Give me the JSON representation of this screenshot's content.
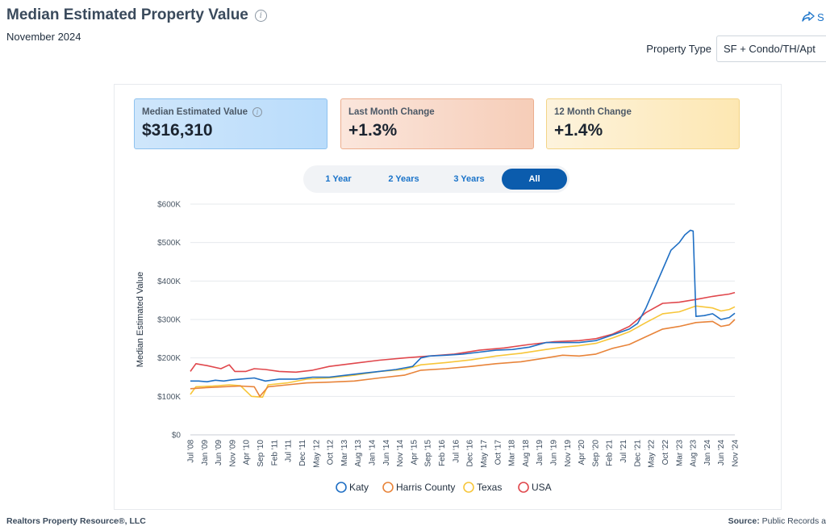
{
  "header": {
    "title": "Median Estimated Property Value",
    "subtitle": "November 2024",
    "share_label": "S",
    "property_type_label": "Property Type",
    "property_type_value": "SF + Condo/TH/Apt"
  },
  "kpis": [
    {
      "label": "Median Estimated Value",
      "value": "$316,310",
      "has_info": true
    },
    {
      "label": "Last Month Change",
      "value": "+1.3%"
    },
    {
      "label": "12 Month Change",
      "value": "+1.4%"
    }
  ],
  "range_tabs": [
    {
      "label": "1 Year",
      "active": false
    },
    {
      "label": "2 Years",
      "active": false
    },
    {
      "label": "3 Years",
      "active": false
    },
    {
      "label": "All",
      "active": true
    }
  ],
  "footer": {
    "left": "Realtors Property Resource®, LLC",
    "right_label": "Source:",
    "right_text": "Public Records a"
  },
  "colors": {
    "katy": "#1f6fc4",
    "harris": "#e8843a",
    "texas": "#f7c63a",
    "usa": "#e0474c",
    "accent": "#0b5cad"
  },
  "chart_data": {
    "type": "line",
    "title": "",
    "xlabel": "",
    "ylabel": "Median Estimated Value",
    "ylim": [
      0,
      600000
    ],
    "y_ticks": [
      0,
      100000,
      200000,
      300000,
      400000,
      500000,
      600000
    ],
    "y_tick_labels": [
      "$0",
      "$100K",
      "$200K",
      "$300K",
      "$400K",
      "$500K",
      "$600K"
    ],
    "x_tick_labels": [
      "Jul '08",
      "Jan '09",
      "Jun '09",
      "Nov '09",
      "Apr '10",
      "Sep '10",
      "Feb '11",
      "Jul '11",
      "Dec '11",
      "May '12",
      "Oct '12",
      "Mar '13",
      "Aug '13",
      "Jan '14",
      "Jun '14",
      "Nov '14",
      "Apr '15",
      "Sep '15",
      "Feb '16",
      "Jul '16",
      "Dec '16",
      "May '17",
      "Oct '17",
      "Mar '18",
      "Aug '18",
      "Jan '19",
      "Jun '19",
      "Nov '19",
      "Apr '20",
      "Sep '20",
      "Feb '21",
      "Jul '21",
      "Dec '21",
      "May '22",
      "Oct '22",
      "Mar '23",
      "Aug '23",
      "Jan '24",
      "Jun '24",
      "Nov '24"
    ],
    "x_start": "2008-07",
    "x_end": "2024-11",
    "grid": true,
    "legend_position": "bottom",
    "series": [
      {
        "name": "Katy",
        "color": "#1f6fc4",
        "points": [
          [
            "2008-07",
            140000
          ],
          [
            "2008-10",
            140000
          ],
          [
            "2009-01",
            138000
          ],
          [
            "2009-04",
            142000
          ],
          [
            "2009-07",
            140000
          ],
          [
            "2009-10",
            143000
          ],
          [
            "2010-01",
            145000
          ],
          [
            "2010-06",
            148000
          ],
          [
            "2010-10",
            140000
          ],
          [
            "2011-03",
            145000
          ],
          [
            "2011-09",
            145000
          ],
          [
            "2012-03",
            150000
          ],
          [
            "2012-09",
            150000
          ],
          [
            "2013-03",
            155000
          ],
          [
            "2013-09",
            160000
          ],
          [
            "2014-03",
            165000
          ],
          [
            "2014-09",
            170000
          ],
          [
            "2015-03",
            178000
          ],
          [
            "2015-06",
            200000
          ],
          [
            "2015-09",
            205000
          ],
          [
            "2016-03",
            207000
          ],
          [
            "2016-09",
            210000
          ],
          [
            "2017-03",
            215000
          ],
          [
            "2017-09",
            220000
          ],
          [
            "2018-03",
            222000
          ],
          [
            "2018-09",
            228000
          ],
          [
            "2019-03",
            240000
          ],
          [
            "2019-09",
            240000
          ],
          [
            "2020-03",
            240000
          ],
          [
            "2020-09",
            245000
          ],
          [
            "2021-03",
            260000
          ],
          [
            "2021-09",
            275000
          ],
          [
            "2021-12",
            290000
          ],
          [
            "2022-03",
            330000
          ],
          [
            "2022-06",
            380000
          ],
          [
            "2022-09",
            430000
          ],
          [
            "2022-12",
            480000
          ],
          [
            "2023-03",
            500000
          ],
          [
            "2023-05",
            520000
          ],
          [
            "2023-07",
            532000
          ],
          [
            "2023-08",
            530000
          ],
          [
            "2023-09",
            308000
          ],
          [
            "2023-12",
            310000
          ],
          [
            "2024-03",
            315000
          ],
          [
            "2024-06",
            300000
          ],
          [
            "2024-09",
            305000
          ],
          [
            "2024-11",
            316310
          ]
        ]
      },
      {
        "name": "Harris County",
        "color": "#e8843a",
        "points": [
          [
            "2008-07",
            120000
          ],
          [
            "2009-01",
            123000
          ],
          [
            "2009-07",
            125000
          ],
          [
            "2010-01",
            127000
          ],
          [
            "2010-06",
            125000
          ],
          [
            "2010-08",
            100000
          ],
          [
            "2010-11",
            125000
          ],
          [
            "2011-06",
            130000
          ],
          [
            "2012-01",
            135000
          ],
          [
            "2012-09",
            137000
          ],
          [
            "2013-06",
            140000
          ],
          [
            "2014-03",
            148000
          ],
          [
            "2014-12",
            155000
          ],
          [
            "2015-06",
            168000
          ],
          [
            "2016-03",
            172000
          ],
          [
            "2016-12",
            178000
          ],
          [
            "2017-09",
            185000
          ],
          [
            "2018-06",
            190000
          ],
          [
            "2019-03",
            200000
          ],
          [
            "2019-09",
            207000
          ],
          [
            "2020-03",
            205000
          ],
          [
            "2020-09",
            210000
          ],
          [
            "2021-03",
            225000
          ],
          [
            "2021-09",
            235000
          ],
          [
            "2022-03",
            255000
          ],
          [
            "2022-09",
            275000
          ],
          [
            "2023-03",
            282000
          ],
          [
            "2023-09",
            292000
          ],
          [
            "2024-03",
            295000
          ],
          [
            "2024-06",
            282000
          ],
          [
            "2024-09",
            286000
          ],
          [
            "2024-11",
            300000
          ]
        ]
      },
      {
        "name": "Texas",
        "color": "#f7c63a",
        "points": [
          [
            "2008-07",
            105000
          ],
          [
            "2008-09",
            125000
          ],
          [
            "2009-03",
            127000
          ],
          [
            "2009-09",
            130000
          ],
          [
            "2010-01",
            128000
          ],
          [
            "2010-05",
            100000
          ],
          [
            "2010-09",
            98000
          ],
          [
            "2010-11",
            130000
          ],
          [
            "2011-06",
            135000
          ],
          [
            "2012-01",
            145000
          ],
          [
            "2012-09",
            148000
          ],
          [
            "2013-06",
            155000
          ],
          [
            "2014-03",
            165000
          ],
          [
            "2014-12",
            170000
          ],
          [
            "2015-06",
            182000
          ],
          [
            "2016-03",
            188000
          ],
          [
            "2016-12",
            195000
          ],
          [
            "2017-09",
            205000
          ],
          [
            "2018-06",
            212000
          ],
          [
            "2019-03",
            222000
          ],
          [
            "2019-09",
            228000
          ],
          [
            "2020-03",
            232000
          ],
          [
            "2020-09",
            238000
          ],
          [
            "2021-03",
            252000
          ],
          [
            "2021-09",
            268000
          ],
          [
            "2022-03",
            292000
          ],
          [
            "2022-09",
            315000
          ],
          [
            "2023-03",
            320000
          ],
          [
            "2023-09",
            335000
          ],
          [
            "2024-03",
            330000
          ],
          [
            "2024-06",
            322000
          ],
          [
            "2024-09",
            326000
          ],
          [
            "2024-11",
            333000
          ]
        ]
      },
      {
        "name": "USA",
        "color": "#e0474c",
        "points": [
          [
            "2008-07",
            165000
          ],
          [
            "2008-09",
            185000
          ],
          [
            "2009-01",
            180000
          ],
          [
            "2009-06",
            172000
          ],
          [
            "2009-09",
            182000
          ],
          [
            "2009-11",
            165000
          ],
          [
            "2010-03",
            165000
          ],
          [
            "2010-06",
            172000
          ],
          [
            "2010-10",
            170000
          ],
          [
            "2011-03",
            165000
          ],
          [
            "2011-09",
            163000
          ],
          [
            "2012-03",
            168000
          ],
          [
            "2012-09",
            178000
          ],
          [
            "2013-06",
            186000
          ],
          [
            "2014-03",
            194000
          ],
          [
            "2014-12",
            200000
          ],
          [
            "2015-09",
            205000
          ],
          [
            "2016-06",
            210000
          ],
          [
            "2017-03",
            220000
          ],
          [
            "2017-12",
            226000
          ],
          [
            "2018-09",
            235000
          ],
          [
            "2019-06",
            242000
          ],
          [
            "2020-03",
            245000
          ],
          [
            "2020-09",
            250000
          ],
          [
            "2021-03",
            262000
          ],
          [
            "2021-09",
            282000
          ],
          [
            "2022-03",
            318000
          ],
          [
            "2022-09",
            342000
          ],
          [
            "2023-03",
            345000
          ],
          [
            "2023-09",
            352000
          ],
          [
            "2024-03",
            360000
          ],
          [
            "2024-09",
            366000
          ],
          [
            "2024-11",
            370000
          ]
        ]
      }
    ]
  }
}
